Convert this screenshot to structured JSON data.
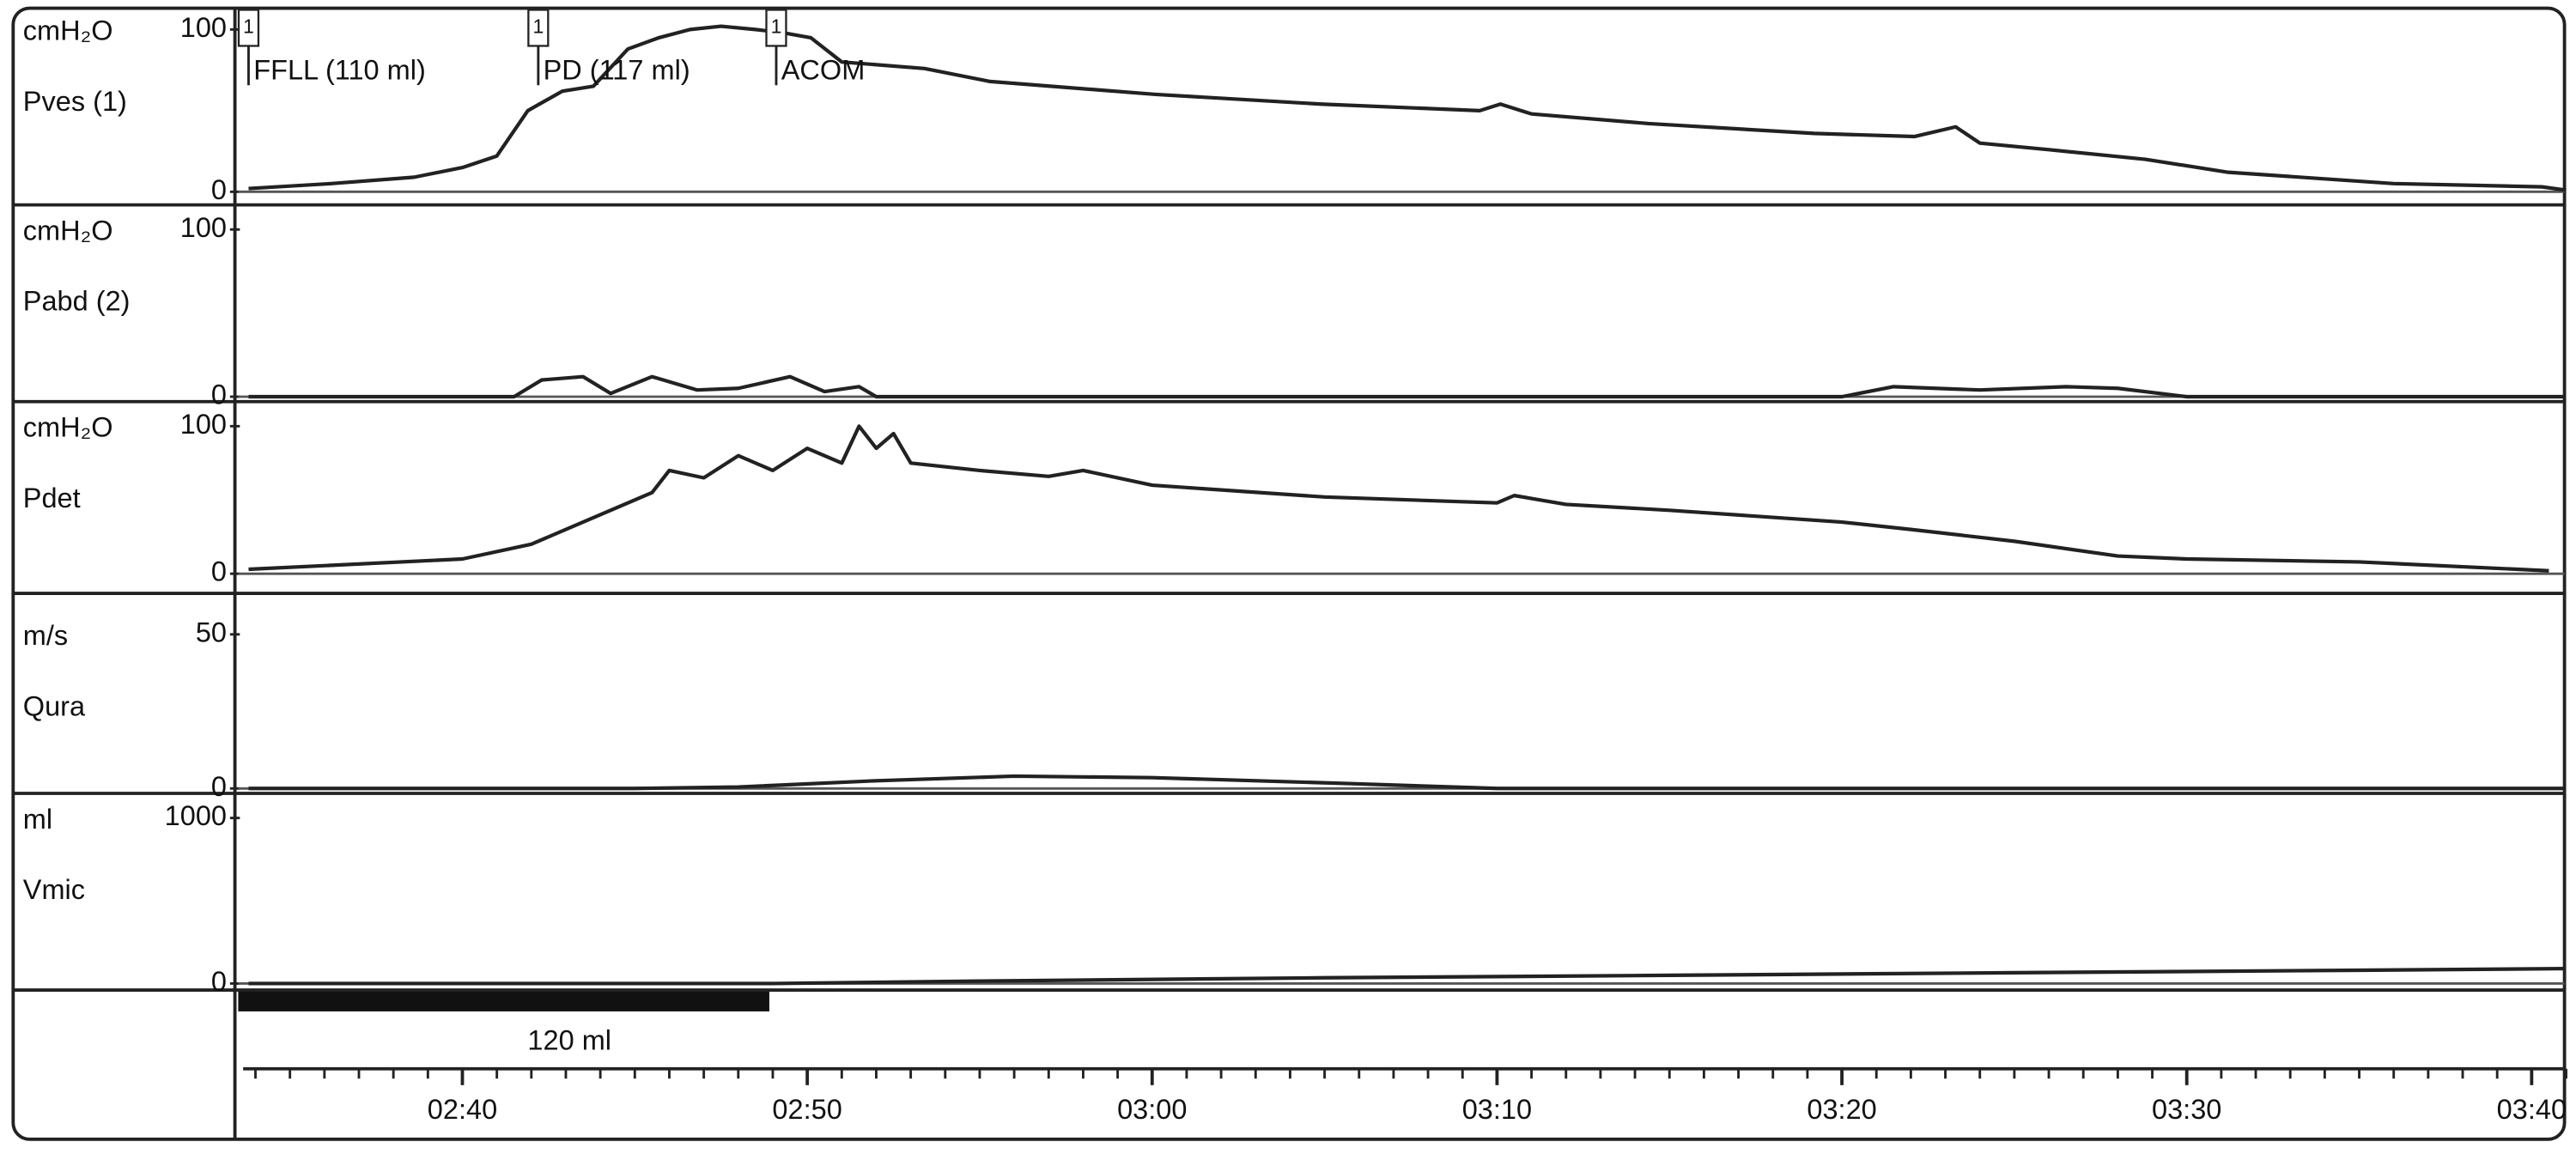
{
  "chart_data": [
    {
      "type": "line",
      "unit": "cmH₂O",
      "name": "Pves (1)",
      "color": "#222",
      "xlim": [
        153.5,
        221
      ],
      "ylim": [
        0,
        100
      ],
      "yticks": [
        0,
        100
      ],
      "x": [
        153.8,
        156.2,
        158.6,
        160,
        161,
        161.9,
        162.9,
        163.8,
        164.8,
        165.7,
        166.6,
        167.5,
        168.5,
        169.3,
        170.1,
        171,
        173.4,
        175.3,
        180.1,
        184.9,
        189.5,
        190.1,
        191,
        194.4,
        199.2,
        202.1,
        203.3,
        204,
        206,
        208.8,
        211.2,
        216,
        220.3,
        221
      ],
      "values": [
        2,
        5,
        9,
        15,
        22,
        50,
        62,
        65,
        88,
        95,
        100,
        102,
        100,
        98,
        95,
        80,
        76,
        68,
        60,
        54,
        50,
        54,
        48,
        42,
        36,
        34,
        40,
        30,
        26,
        20,
        12,
        5,
        3,
        1
      ]
    },
    {
      "type": "line",
      "unit": "cmH₂O",
      "name": "Pabd (2)",
      "color": "#222",
      "xlim": [
        153.5,
        221
      ],
      "ylim": [
        0,
        100
      ],
      "yticks": [
        0,
        100
      ],
      "x": [
        153.8,
        161.5,
        162.3,
        163.5,
        164.3,
        165.5,
        166.8,
        168,
        169.5,
        170.5,
        171.5,
        172,
        200,
        201.5,
        204,
        206.5,
        208,
        210,
        221
      ],
      "values": [
        0,
        0,
        10,
        12,
        2,
        12,
        4,
        5,
        12,
        3,
        6,
        0,
        0,
        6,
        4,
        6,
        5,
        0,
        0
      ]
    },
    {
      "type": "line",
      "unit": "cmH₂O",
      "name": "Pdet",
      "color": "#222",
      "xlim": [
        153.5,
        221
      ],
      "ylim": [
        0,
        100
      ],
      "yticks": [
        0,
        100
      ],
      "x": [
        153.8,
        160,
        162,
        164,
        165.5,
        166,
        167,
        168,
        169,
        170,
        171,
        171.5,
        172,
        172.5,
        173,
        175,
        177,
        178,
        180,
        185,
        190,
        190.5,
        192,
        195,
        200,
        202,
        205,
        208,
        210,
        215,
        220.5
      ],
      "values": [
        3,
        10,
        20,
        40,
        55,
        70,
        65,
        80,
        70,
        85,
        75,
        100,
        85,
        95,
        75,
        70,
        66,
        70,
        60,
        52,
        48,
        53,
        47,
        43,
        35,
        30,
        22,
        12,
        10,
        8,
        2
      ]
    },
    {
      "type": "line",
      "unit": "m/s",
      "name": "Qura",
      "color": "#222",
      "xlim": [
        153.5,
        221
      ],
      "ylim": [
        0,
        50
      ],
      "yticks": [
        0,
        50
      ],
      "x": [
        153.8,
        165,
        168,
        172,
        176,
        180,
        186,
        190,
        221
      ],
      "values": [
        0,
        0,
        0.5,
        2.5,
        4,
        3.5,
        1.5,
        0,
        0
      ]
    },
    {
      "type": "line",
      "unit": "ml",
      "name": "Vmic",
      "color": "#222",
      "xlim": [
        153.5,
        221
      ],
      "ylim": [
        0,
        1000
      ],
      "yticks": [
        0,
        1000
      ],
      "x": [
        153.8,
        169,
        175,
        185,
        195,
        205,
        215,
        221
      ],
      "values": [
        0,
        0,
        15,
        35,
        50,
        65,
        80,
        90
      ]
    }
  ],
  "time_axis": {
    "xlim": [
      153.5,
      221
    ],
    "xticks": [
      {
        "value": 160,
        "label": "02:40"
      },
      {
        "value": 170,
        "label": "02:50"
      },
      {
        "value": 180,
        "label": "03:00"
      },
      {
        "value": 190,
        "label": "03:10"
      },
      {
        "value": 200,
        "label": "03:20"
      },
      {
        "value": 210,
        "label": "03:30"
      },
      {
        "value": 220,
        "label": "03:40"
      }
    ]
  },
  "events": [
    {
      "x": 153.8,
      "flag": "1",
      "label": "FFLL (110 ml)"
    },
    {
      "x": 162.2,
      "flag": "1",
      "label": "PD (117 ml)"
    },
    {
      "x": 169.1,
      "flag": "1",
      "label": "ACOM"
    }
  ],
  "infusion": {
    "start": 153.5,
    "end": 168.9,
    "label": "120 ml"
  }
}
